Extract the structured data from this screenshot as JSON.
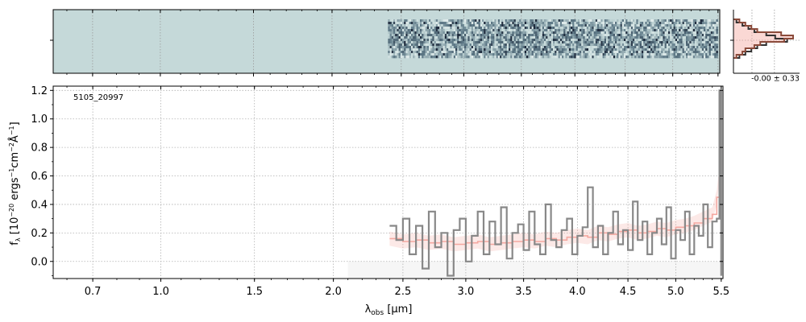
{
  "chart_data": [
    {
      "type": "line",
      "panel": "main-spectrum",
      "annotation": "5105_20997",
      "xlabel_symbol": "λ",
      "xlabel_subscript": "obs",
      "xlabel_unit": "[μm]",
      "ylabel": "f_λ [10^-20 ergs^-1cm^-2Å^-1]",
      "xlim": [
        0.55,
        5.52
      ],
      "ylim": [
        -0.12,
        1.23
      ],
      "x_scale": "square-root-like (nonlinear)",
      "x_ticks": [
        {
          "value": 0.7,
          "label": "0.7"
        },
        {
          "value": 1.0,
          "label": "1.0"
        },
        {
          "value": 1.5,
          "label": "1.5"
        },
        {
          "value": 2.0,
          "label": "2.0"
        },
        {
          "value": 2.5,
          "label": "2.5"
        },
        {
          "value": 3.0,
          "label": "3.0"
        },
        {
          "value": 3.5,
          "label": "3.5"
        },
        {
          "value": 4.0,
          "label": "4.0"
        },
        {
          "value": 4.5,
          "label": "4.5"
        },
        {
          "value": 5.0,
          "label": "5.0"
        },
        {
          "value": 5.5,
          "label": "5.5"
        }
      ],
      "y_ticks": [
        {
          "value": 0.0,
          "label": "0.0"
        },
        {
          "value": 0.2,
          "label": "0.2"
        },
        {
          "value": 0.4,
          "label": "0.4"
        },
        {
          "value": 0.6,
          "label": "0.6"
        },
        {
          "value": 0.8,
          "label": "0.8"
        },
        {
          "value": 1.0,
          "label": "1.0"
        },
        {
          "value": 1.2,
          "label": "1.2"
        }
      ],
      "grid": true,
      "series": [
        {
          "style": "step",
          "color": "#888888",
          "x": [
            2.4,
            2.45,
            2.5,
            2.55,
            2.6,
            2.65,
            2.7,
            2.75,
            2.8,
            2.85,
            2.9,
            2.95,
            3.0,
            3.05,
            3.1,
            3.15,
            3.2,
            3.25,
            3.3,
            3.35,
            3.4,
            3.45,
            3.5,
            3.55,
            3.6,
            3.65,
            3.7,
            3.75,
            3.8,
            3.85,
            3.9,
            3.95,
            4.0,
            4.05,
            4.1,
            4.15,
            4.2,
            4.25,
            4.3,
            4.35,
            4.4,
            4.45,
            4.5,
            4.55,
            4.6,
            4.65,
            4.7,
            4.75,
            4.8,
            4.85,
            4.9,
            4.95,
            5.0,
            5.05,
            5.1,
            5.15,
            5.2,
            5.25,
            5.3,
            5.35,
            5.4,
            5.45,
            5.48,
            5.5
          ],
          "y": [
            0.25,
            0.15,
            0.3,
            0.05,
            0.25,
            -0.05,
            0.35,
            0.1,
            0.2,
            -0.1,
            0.22,
            0.3,
            0.0,
            0.18,
            0.35,
            0.05,
            0.28,
            0.12,
            0.38,
            0.02,
            0.2,
            0.26,
            0.08,
            0.35,
            0.12,
            0.05,
            0.4,
            0.15,
            0.1,
            0.22,
            0.3,
            0.05,
            0.18,
            0.24,
            0.52,
            0.1,
            0.25,
            0.05,
            0.2,
            0.35,
            0.12,
            0.22,
            0.08,
            0.42,
            0.15,
            0.28,
            0.05,
            0.2,
            0.3,
            0.12,
            0.38,
            0.02,
            0.22,
            0.15,
            0.35,
            0.05,
            0.25,
            0.18,
            0.4,
            0.1,
            0.28,
            0.3,
            1.2,
            -0.1
          ]
        },
        {
          "style": "step",
          "color": "#f4a8a0",
          "x": [
            2.4,
            2.5,
            2.6,
            2.7,
            2.8,
            2.9,
            3.0,
            3.1,
            3.2,
            3.3,
            3.4,
            3.5,
            3.6,
            3.7,
            3.8,
            3.9,
            4.0,
            4.1,
            4.2,
            4.3,
            4.4,
            4.5,
            4.6,
            4.7,
            4.8,
            4.9,
            5.0,
            5.1,
            5.2,
            5.3,
            5.4,
            5.45,
            5.5
          ],
          "y": [
            0.16,
            0.14,
            0.15,
            0.13,
            0.14,
            0.12,
            0.13,
            0.14,
            0.12,
            0.13,
            0.14,
            0.15,
            0.14,
            0.16,
            0.15,
            0.17,
            0.18,
            0.17,
            0.2,
            0.19,
            0.21,
            0.22,
            0.2,
            0.21,
            0.23,
            0.22,
            0.24,
            0.25,
            0.27,
            0.3,
            0.33,
            0.45,
            0.72
          ]
        }
      ],
      "background_band": {
        "x": [
          2.1,
          5.5
        ],
        "y": [
          -0.12,
          0.0
        ],
        "color": "#eeeeee"
      }
    },
    {
      "type": "heatmap",
      "panel": "2d-spectrum",
      "xlim": [
        0.55,
        5.52
      ],
      "data_x_range": [
        2.4,
        5.48
      ],
      "background_color": "#c5d9d9",
      "colormap": [
        "#ffffff",
        "#c5d9d9",
        "#5f7a88",
        "#1b2638"
      ]
    },
    {
      "type": "line",
      "panel": "profile",
      "label": "-0.00 ± 0.33",
      "series": [
        {
          "style": "step",
          "color": "#333333",
          "values": [
            0.05,
            0.15,
            0.25,
            0.35,
            0.55,
            0.7,
            0.9,
            0.55,
            0.4,
            0.3,
            0.2,
            0.1
          ]
        },
        {
          "style": "step",
          "color": "#8b4b3b",
          "values": [
            0.1,
            0.2,
            0.3,
            0.4,
            0.8,
            1.0,
            0.85,
            0.45,
            0.35,
            0.2,
            0.15,
            0.05
          ]
        }
      ]
    }
  ]
}
